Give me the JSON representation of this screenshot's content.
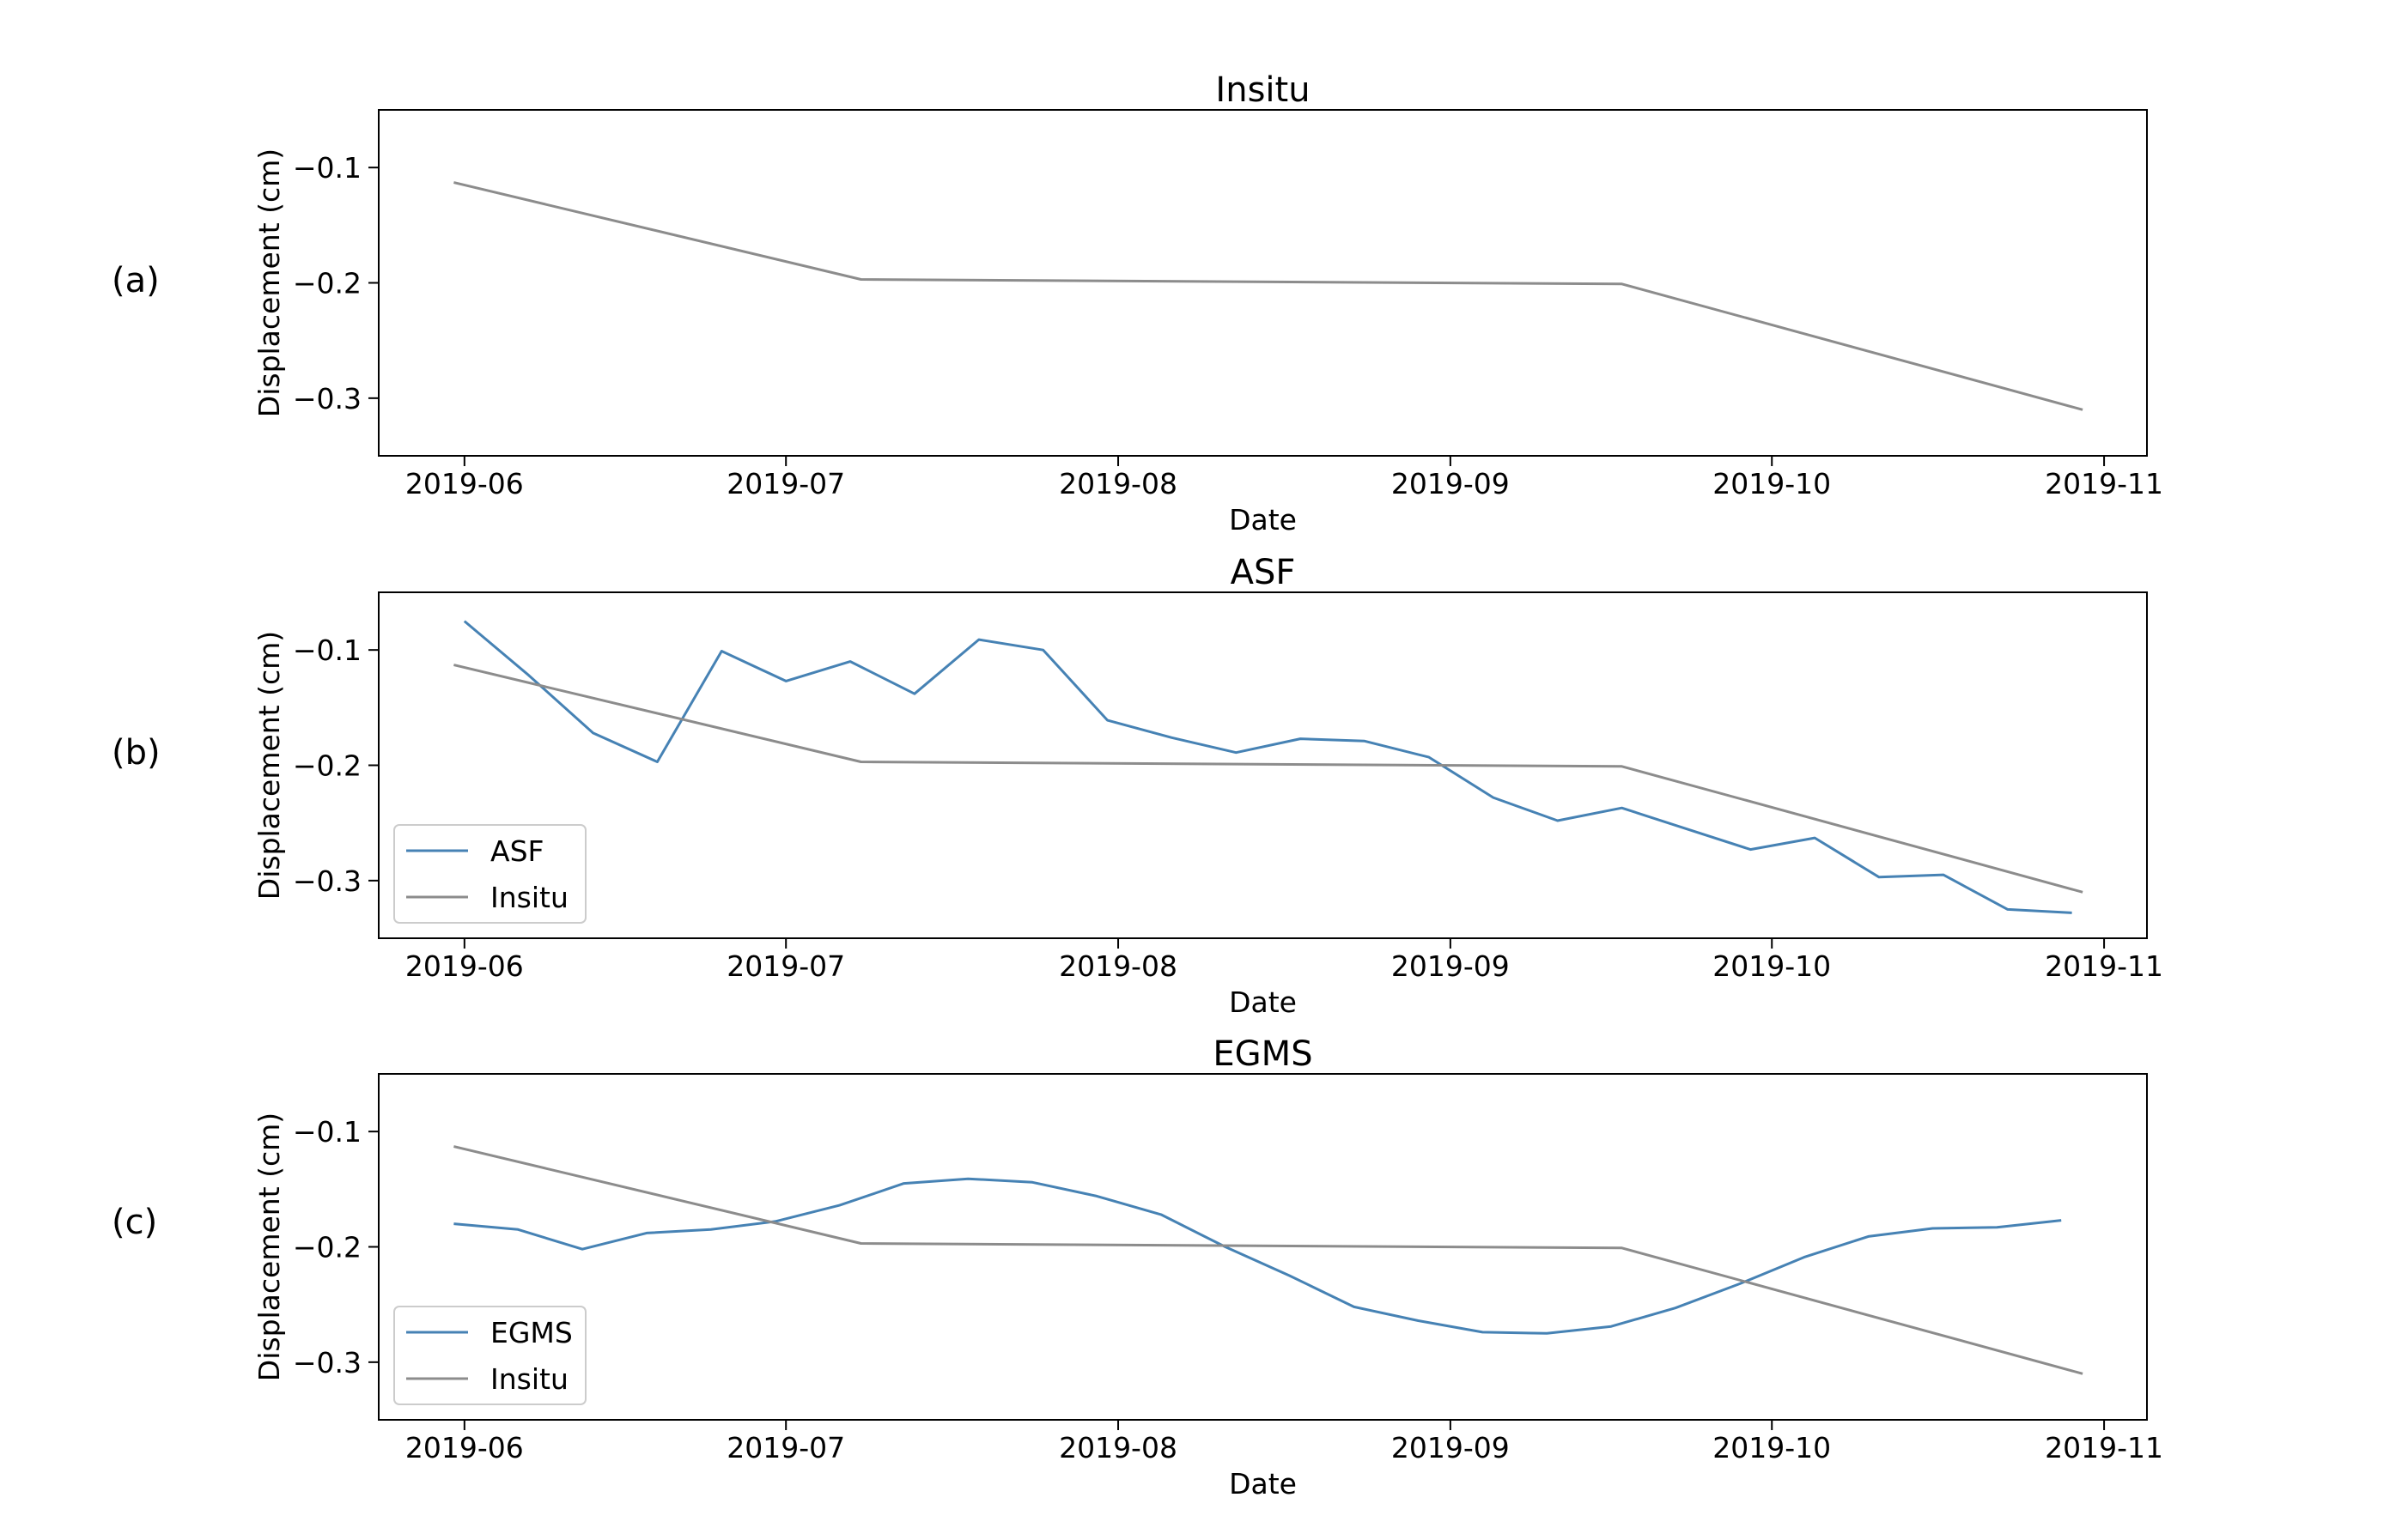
{
  "figure": {
    "panel_labels": [
      "(a)",
      "(b)",
      "(c)"
    ]
  },
  "chart_data": [
    {
      "type": "line",
      "title": "Insitu",
      "xlabel": "Date",
      "ylabel": "Displacement (cm)",
      "xlim": [
        "2019-05-24",
        "2019-11-05"
      ],
      "ylim": [
        -0.35,
        -0.05
      ],
      "xticks": [
        "2019-06-01",
        "2019-07-01",
        "2019-08-01",
        "2019-09-01",
        "2019-10-01",
        "2019-11-01"
      ],
      "xtick_labels": [
        "2019-06",
        "2019-07",
        "2019-08",
        "2019-09",
        "2019-10",
        "2019-11"
      ],
      "yticks": [
        -0.1,
        -0.2,
        -0.3
      ],
      "ytick_labels": [
        "−0.1",
        "−0.2",
        "−0.3"
      ],
      "grid": false,
      "legend": null,
      "series": [
        {
          "name": "Insitu",
          "color": "#8c8c8c",
          "x": [
            "2019-05-31",
            "2019-07-08",
            "2019-09-17",
            "2019-10-30"
          ],
          "y": [
            -0.113,
            -0.197,
            -0.201,
            -0.31
          ]
        }
      ]
    },
    {
      "type": "line",
      "title": "ASF",
      "xlabel": "Date",
      "ylabel": "Displacement (cm)",
      "xlim": [
        "2019-05-24",
        "2019-11-05"
      ],
      "ylim": [
        -0.35,
        -0.05
      ],
      "xticks": [
        "2019-06-01",
        "2019-07-01",
        "2019-08-01",
        "2019-09-01",
        "2019-10-01",
        "2019-11-01"
      ],
      "xtick_labels": [
        "2019-06",
        "2019-07",
        "2019-08",
        "2019-09",
        "2019-10",
        "2019-11"
      ],
      "yticks": [
        -0.1,
        -0.2,
        -0.3
      ],
      "ytick_labels": [
        "−0.1",
        "−0.2",
        "−0.3"
      ],
      "grid": false,
      "legend": "lower left",
      "series": [
        {
          "name": "ASF",
          "color": "#4682b4",
          "x": [
            "2019-06-01",
            "2019-06-07",
            "2019-06-13",
            "2019-06-19",
            "2019-06-25",
            "2019-07-01",
            "2019-07-07",
            "2019-07-13",
            "2019-07-19",
            "2019-07-25",
            "2019-07-31",
            "2019-08-06",
            "2019-08-12",
            "2019-08-18",
            "2019-08-24",
            "2019-08-30",
            "2019-09-05",
            "2019-09-11",
            "2019-09-17",
            "2019-09-23",
            "2019-09-29",
            "2019-10-05",
            "2019-10-11",
            "2019-10-17",
            "2019-10-23",
            "2019-10-29"
          ],
          "y": [
            -0.075,
            -0.122,
            -0.172,
            -0.197,
            -0.101,
            -0.127,
            -0.11,
            -0.138,
            -0.091,
            -0.1,
            -0.161,
            -0.176,
            -0.189,
            -0.177,
            -0.179,
            -0.193,
            -0.228,
            -0.248,
            -0.237,
            -0.255,
            -0.273,
            -0.263,
            -0.297,
            -0.295,
            -0.325,
            -0.328
          ]
        },
        {
          "name": "Insitu",
          "color": "#8c8c8c",
          "x": [
            "2019-05-31",
            "2019-07-08",
            "2019-09-17",
            "2019-10-30"
          ],
          "y": [
            -0.113,
            -0.197,
            -0.201,
            -0.31
          ]
        }
      ]
    },
    {
      "type": "line",
      "title": "EGMS",
      "xlabel": "Date",
      "ylabel": "Displacement (cm)",
      "xlim": [
        "2019-05-24",
        "2019-11-05"
      ],
      "ylim": [
        -0.35,
        -0.05
      ],
      "xticks": [
        "2019-06-01",
        "2019-07-01",
        "2019-08-01",
        "2019-09-01",
        "2019-10-01",
        "2019-11-01"
      ],
      "xtick_labels": [
        "2019-06",
        "2019-07",
        "2019-08",
        "2019-09",
        "2019-10",
        "2019-11"
      ],
      "yticks": [
        -0.1,
        -0.2,
        -0.3
      ],
      "ytick_labels": [
        "−0.1",
        "−0.2",
        "−0.3"
      ],
      "grid": false,
      "legend": "lower left",
      "series": [
        {
          "name": "EGMS",
          "color": "#4682b4",
          "x": [
            "2019-05-31",
            "2019-06-06",
            "2019-06-12",
            "2019-06-18",
            "2019-06-24",
            "2019-06-30",
            "2019-07-06",
            "2019-07-12",
            "2019-07-18",
            "2019-07-24",
            "2019-07-30",
            "2019-08-05",
            "2019-08-11",
            "2019-08-17",
            "2019-08-23",
            "2019-08-29",
            "2019-09-04",
            "2019-09-10",
            "2019-09-16",
            "2019-09-22",
            "2019-09-28",
            "2019-10-04",
            "2019-10-10",
            "2019-10-16",
            "2019-10-22",
            "2019-10-28"
          ],
          "y": [
            -0.18,
            -0.185,
            -0.202,
            -0.188,
            -0.185,
            -0.178,
            -0.164,
            -0.145,
            -0.141,
            -0.144,
            -0.156,
            -0.172,
            -0.2,
            -0.225,
            -0.252,
            -0.264,
            -0.274,
            -0.275,
            -0.269,
            -0.253,
            -0.232,
            -0.209,
            -0.191,
            -0.184,
            -0.183,
            -0.177
          ]
        },
        {
          "name": "Insitu",
          "color": "#8c8c8c",
          "x": [
            "2019-05-31",
            "2019-07-08",
            "2019-09-17",
            "2019-10-30"
          ],
          "y": [
            -0.113,
            -0.197,
            -0.201,
            -0.31
          ]
        }
      ]
    }
  ]
}
